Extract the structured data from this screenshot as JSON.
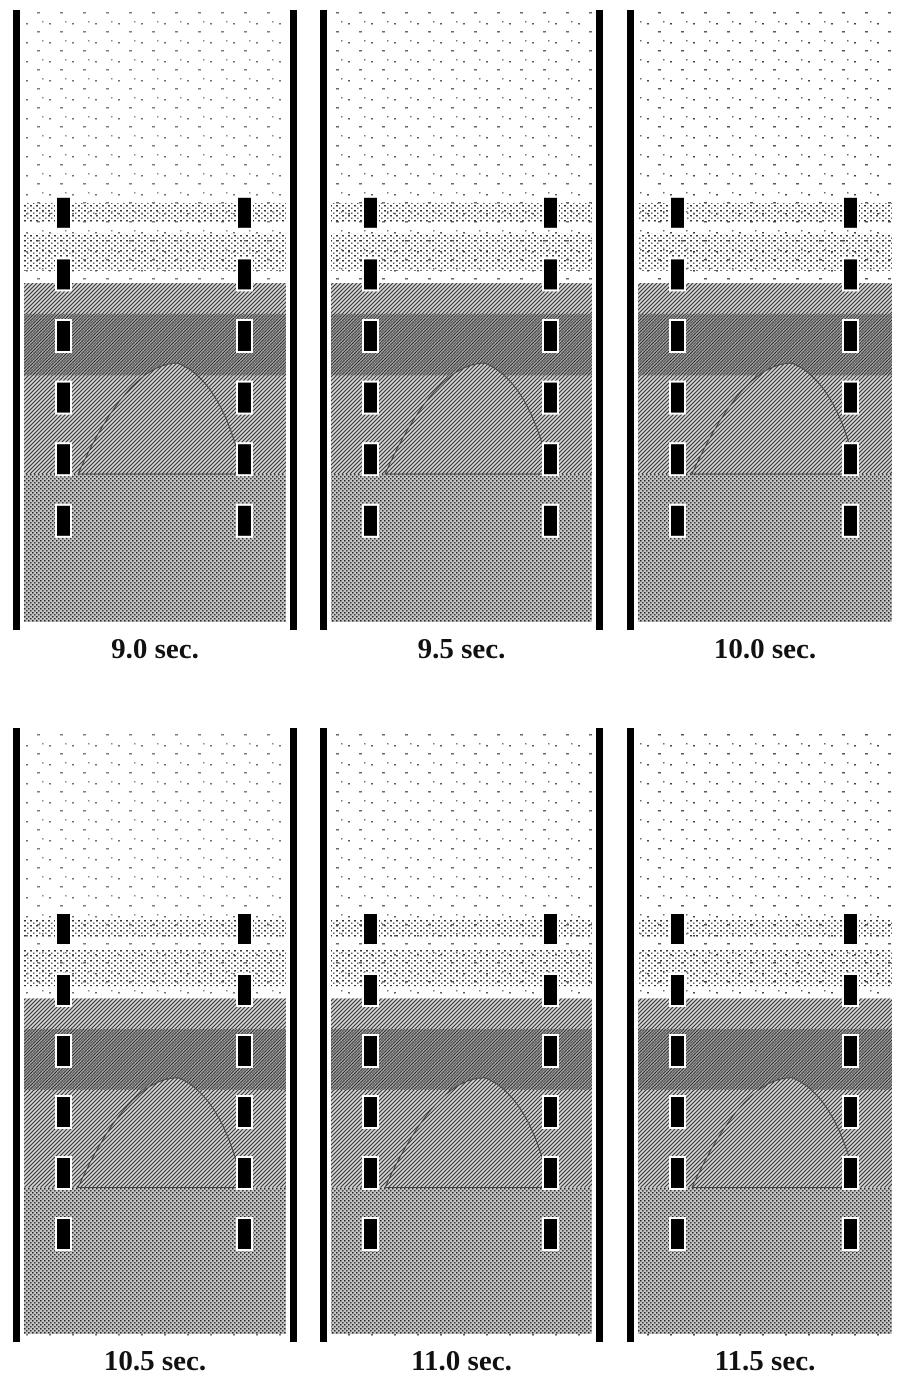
{
  "panels": [
    {
      "label": "9.0 sec."
    },
    {
      "label": "9.5 sec."
    },
    {
      "label": "10.0 sec."
    },
    {
      "label": "10.5 sec."
    },
    {
      "label": "11.0 sec."
    },
    {
      "label": "11.5 sec."
    }
  ]
}
